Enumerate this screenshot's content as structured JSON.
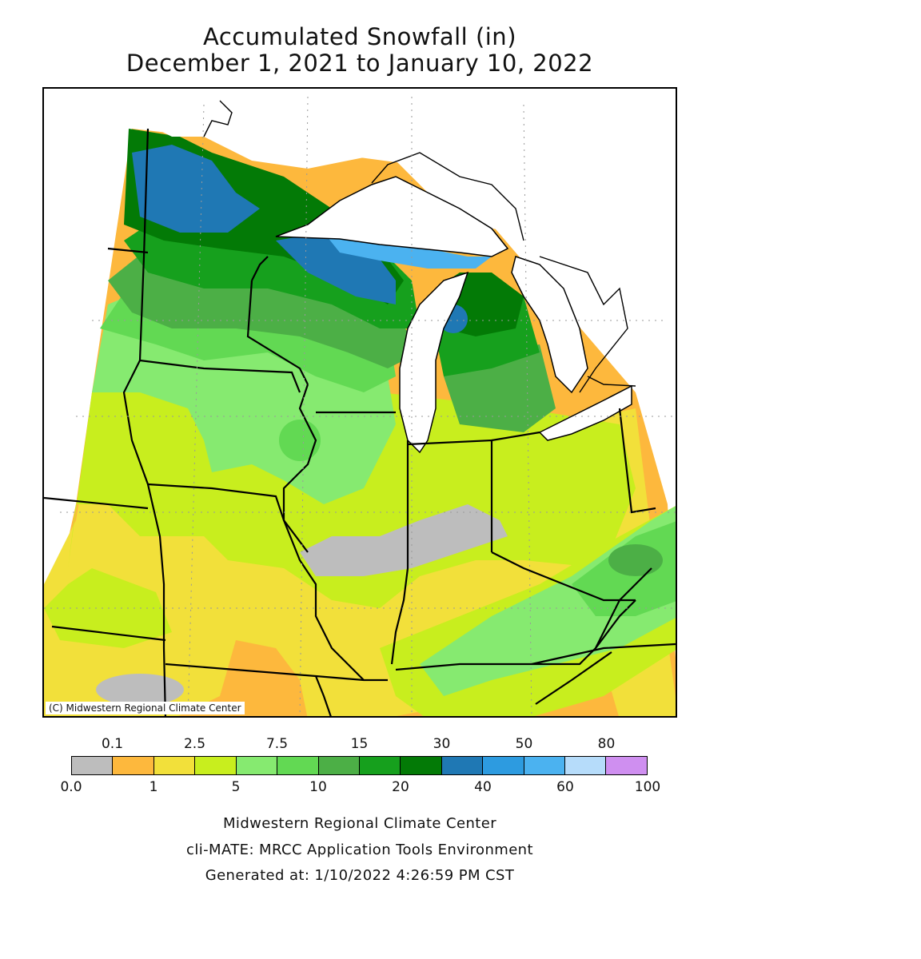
{
  "title": {
    "line1": "Accumulated Snowfall (in)",
    "line2": "December 1, 2021 to January 10, 2022"
  },
  "copyright": "(C) Midwestern Regional Climate Center",
  "legend": {
    "upper_labels": [
      "0.1",
      "2.5",
      "7.5",
      "15",
      "30",
      "50",
      "80"
    ],
    "lower_labels": [
      "0.0",
      "1",
      "5",
      "10",
      "20",
      "40",
      "60",
      "100"
    ],
    "colors": [
      "#bdbdbd",
      "#fdb83d",
      "#f2e03a",
      "#c8ee1e",
      "#86ea70",
      "#62d953",
      "#4caf46",
      "#16a01d",
      "#037a06",
      "#1f78b4",
      "#2d9be0",
      "#4bb2f0",
      "#b6dcfa",
      "#cf8ff0"
    ]
  },
  "footer": {
    "line1": "Midwestern Regional Climate Center",
    "line2": "cli-MATE: MRCC Application Tools Environment",
    "line3": "Generated at: 1/10/2022 4:26:59 PM CST"
  },
  "colors": {
    "trace": "#bdbdbd",
    "lt1": "#fdb83d",
    "lt2_5": "#f2e03a",
    "lt5": "#c8ee1e",
    "lt7_5": "#86ea70",
    "lt10": "#62d953",
    "lt15": "#4caf46",
    "lt20": "#16a01d",
    "lt30": "#037a06",
    "lt40": "#1f78b4",
    "lt50": "#2d9be0",
    "lt60": "#4bb2f0",
    "water": "#ffffff",
    "border": "#000000"
  }
}
